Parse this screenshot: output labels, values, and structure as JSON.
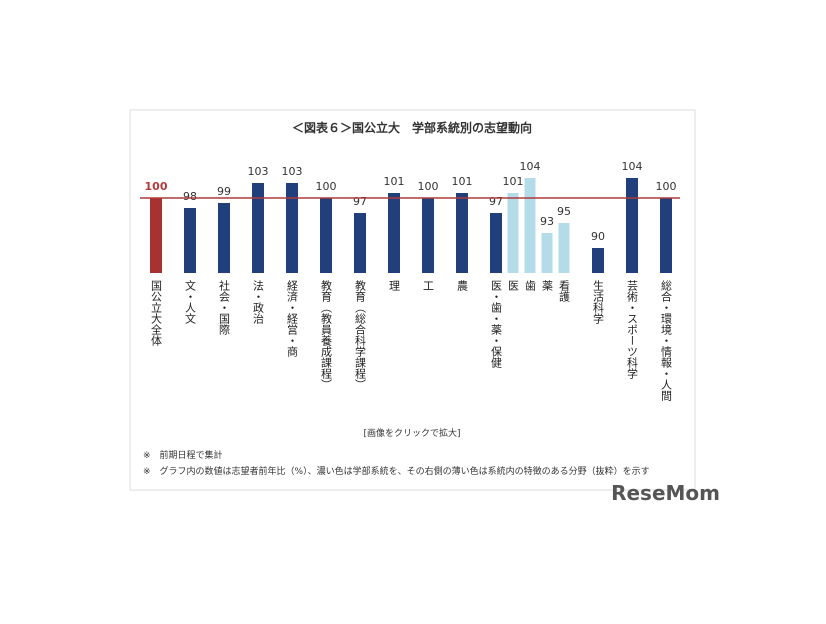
{
  "chart_data": {
    "type": "bar",
    "title": "＜図表６＞国公立大　学部系統別の志望動向",
    "categories": [
      "国公立大全体",
      "文・人文",
      "社会・国際",
      "法・政治",
      "経済・経営・商",
      "教育（教員養成課程）",
      "教育（総合科学課程）",
      "理",
      "工",
      "農",
      "医・歯・薬・保健",
      "医",
      "歯",
      "薬",
      "看護",
      "生活科学",
      "芸術・スポーツ科学",
      "総合・環境・情報・人間"
    ],
    "values": [
      100,
      98,
      99,
      103,
      103,
      100,
      97,
      101,
      100,
      101,
      97,
      101,
      104,
      93,
      95,
      90,
      104,
      100
    ],
    "colors": [
      "#a83232",
      "#213f7a",
      "#213f7a",
      "#213f7a",
      "#213f7a",
      "#213f7a",
      "#213f7a",
      "#213f7a",
      "#213f7a",
      "#213f7a",
      "#213f7a",
      "#b3dbe8",
      "#b3dbe8",
      "#b3dbe8",
      "#b3dbe8",
      "#213f7a",
      "#213f7a",
      "#213f7a"
    ],
    "ylim": [
      85,
      110
    ],
    "reference_line": 100,
    "reference_color": "#b03a3a",
    "caption": "[画像をクリックで拡大]",
    "notes": [
      "※　前期日程で集計",
      "※　グラフ内の数値は志望者前年比（%）、濃い色は学部系統を、その右側の薄い色は系統内の特徴のある分野（抜粋）を示す"
    ],
    "logo": "ReseMom"
  }
}
